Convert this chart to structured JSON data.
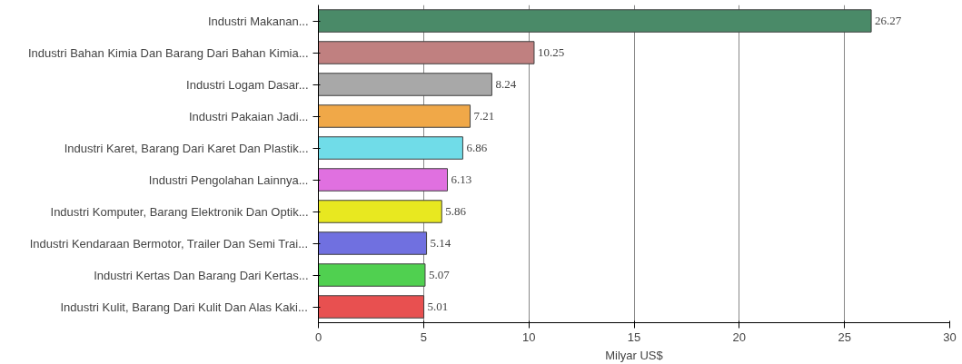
{
  "chart_data": {
    "type": "bar",
    "orientation": "horizontal",
    "xlabel": "Milyar US$",
    "categories": [
      "Industri Makanan...",
      "Industri Bahan Kimia Dan Barang Dari Bahan Kimia...",
      "Industri Logam Dasar...",
      "Industri Pakaian Jadi...",
      "Industri Karet, Barang Dari Karet Dan Plastik...",
      "Industri Pengolahan Lainnya...",
      "Industri Komputer, Barang Elektronik Dan Optik...",
      "Industri Kendaraan Bermotor, Trailer Dan Semi Trai...",
      "Industri Kertas Dan Barang Dari Kertas...",
      "Industri Kulit, Barang Dari Kulit Dan Alas Kaki..."
    ],
    "values": [
      26.27,
      10.25,
      8.24,
      7.21,
      6.86,
      6.13,
      5.86,
      5.14,
      5.07,
      5.01
    ],
    "colors": [
      "#4a8a68",
      "#c08080",
      "#a8a8a8",
      "#f0a848",
      "#70dce8",
      "#e070e0",
      "#e8e820",
      "#7070e0",
      "#50d050",
      "#e85050"
    ],
    "xlim": [
      0,
      30
    ],
    "xticks": [
      0,
      5,
      10,
      15,
      20,
      25,
      30
    ],
    "grid": "x",
    "data_labels": true
  }
}
